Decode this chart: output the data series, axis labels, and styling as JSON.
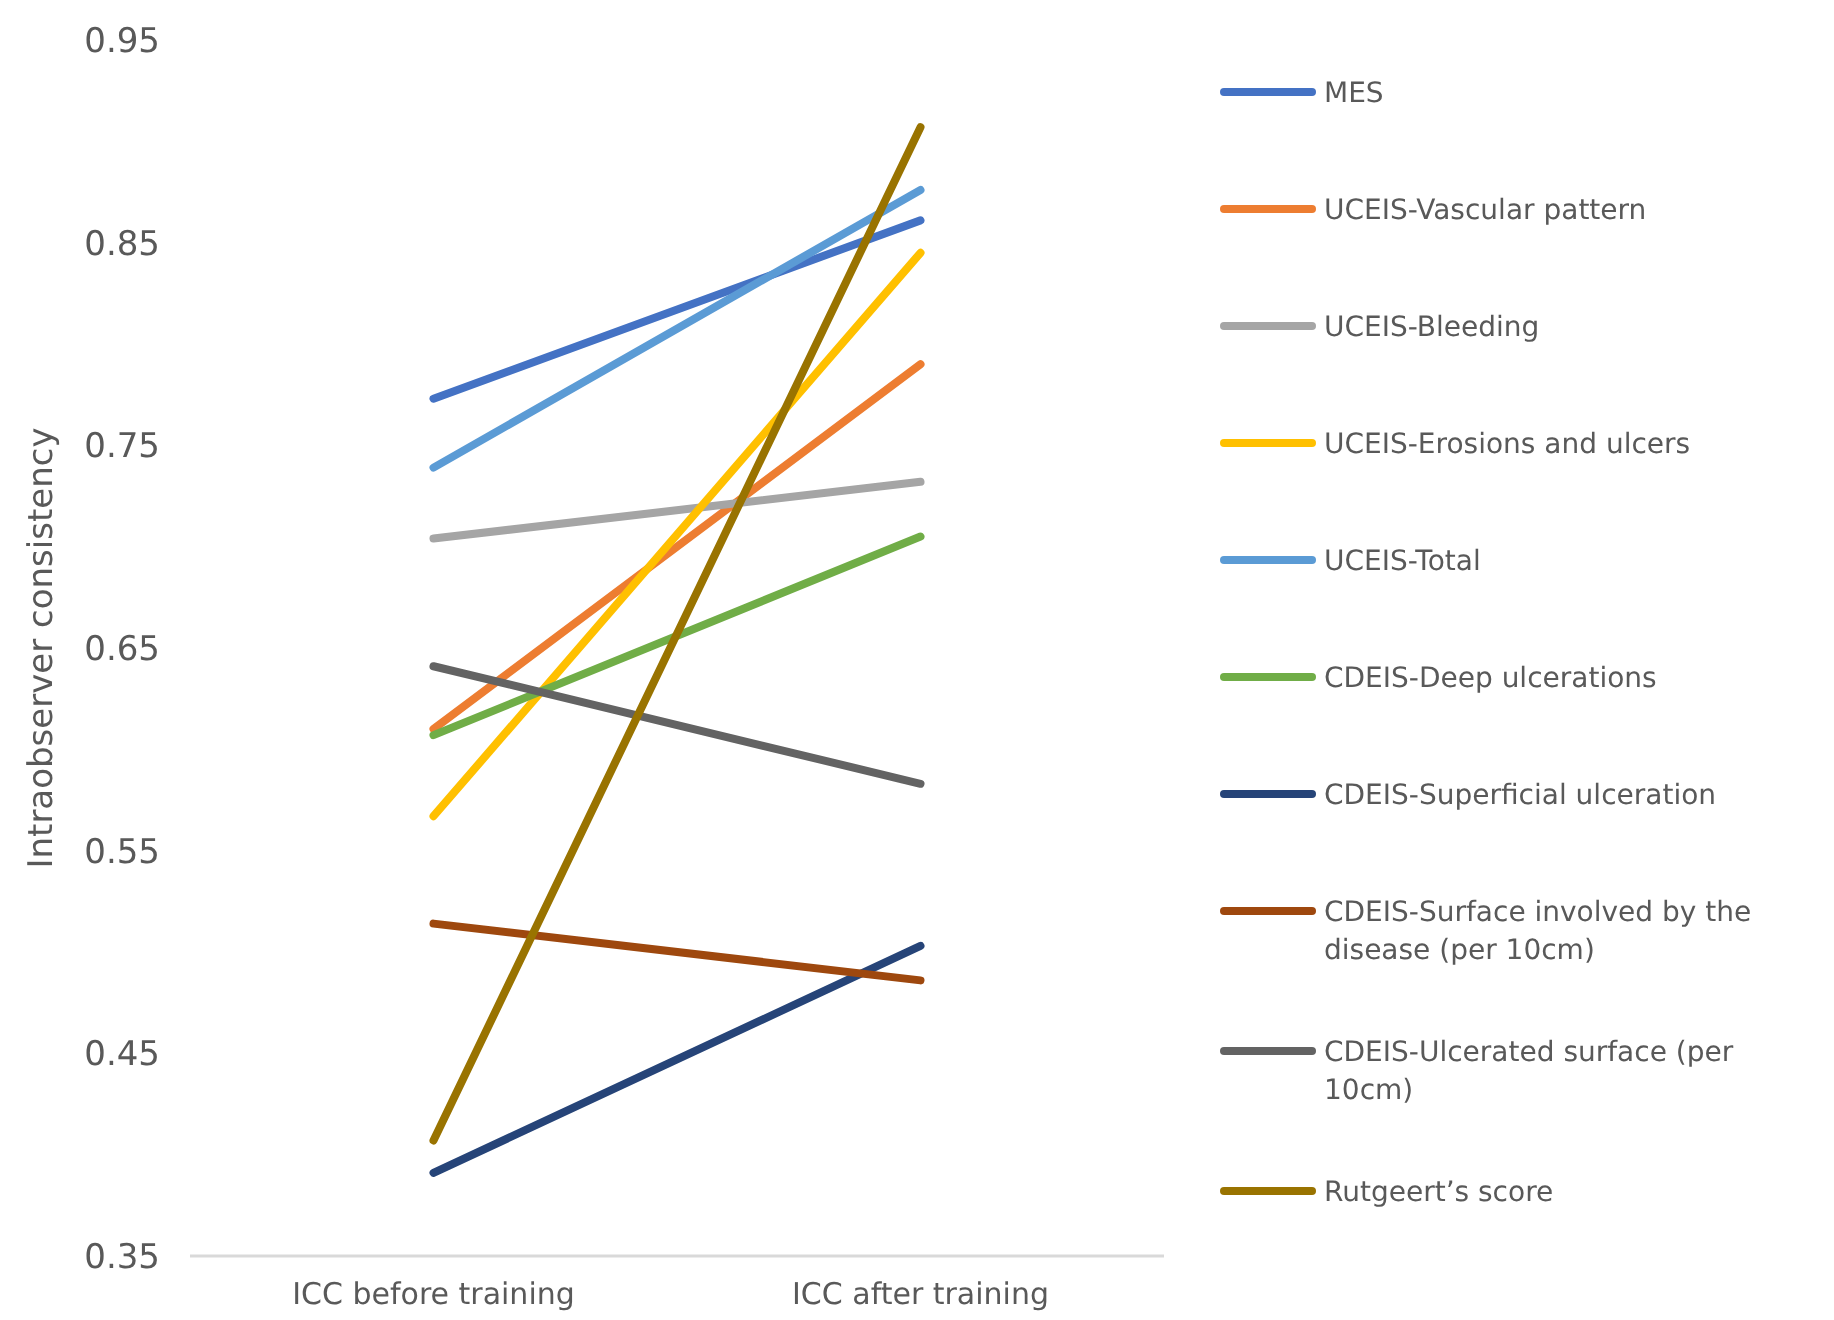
{
  "chart_data": {
    "type": "line",
    "ylabel": "Intraobserver consistency",
    "categories": [
      "ICC before training",
      "ICC after training"
    ],
    "series": [
      {
        "name": "MES",
        "color": "#4472c4",
        "values": [
          0.773,
          0.861
        ]
      },
      {
        "name": "UCEIS-Vascular pattern",
        "color": "#ed7d31",
        "values": [
          0.61,
          0.79
        ]
      },
      {
        "name": "UCEIS-Bleeding",
        "color": "#a5a5a5",
        "values": [
          0.704,
          0.732
        ]
      },
      {
        "name": "UCEIS-Erosions and ulcers",
        "color": "#ffc000",
        "values": [
          0.567,
          0.845
        ]
      },
      {
        "name": "UCEIS-Total",
        "color": "#5b9bd5",
        "values": [
          0.739,
          0.876
        ]
      },
      {
        "name": "CDEIS-Deep ulcerations",
        "color": "#70ad47",
        "values": [
          0.607,
          0.705
        ]
      },
      {
        "name": "CDEIS-Superficial ulceration",
        "color": "#264478",
        "values": [
          0.391,
          0.503
        ]
      },
      {
        "name": "CDEIS-Surface involved by the disease (per 10cm)",
        "color": "#9e480e",
        "values": [
          0.514,
          0.486
        ]
      },
      {
        "name": "CDEIS-Ulcerated surface (per 10cm)",
        "color": "#636363",
        "values": [
          0.641,
          0.583
        ]
      },
      {
        "name": "Rutgeert’s score",
        "color": "#997300",
        "values": [
          0.407,
          0.907
        ]
      }
    ],
    "ylim": [
      0.35,
      0.95
    ],
    "yticks": [
      0.35,
      0.45,
      0.55,
      0.65,
      0.75,
      0.85,
      0.95
    ],
    "grid": false,
    "legend": "right",
    "marker": "none",
    "line_style": "solid"
  }
}
